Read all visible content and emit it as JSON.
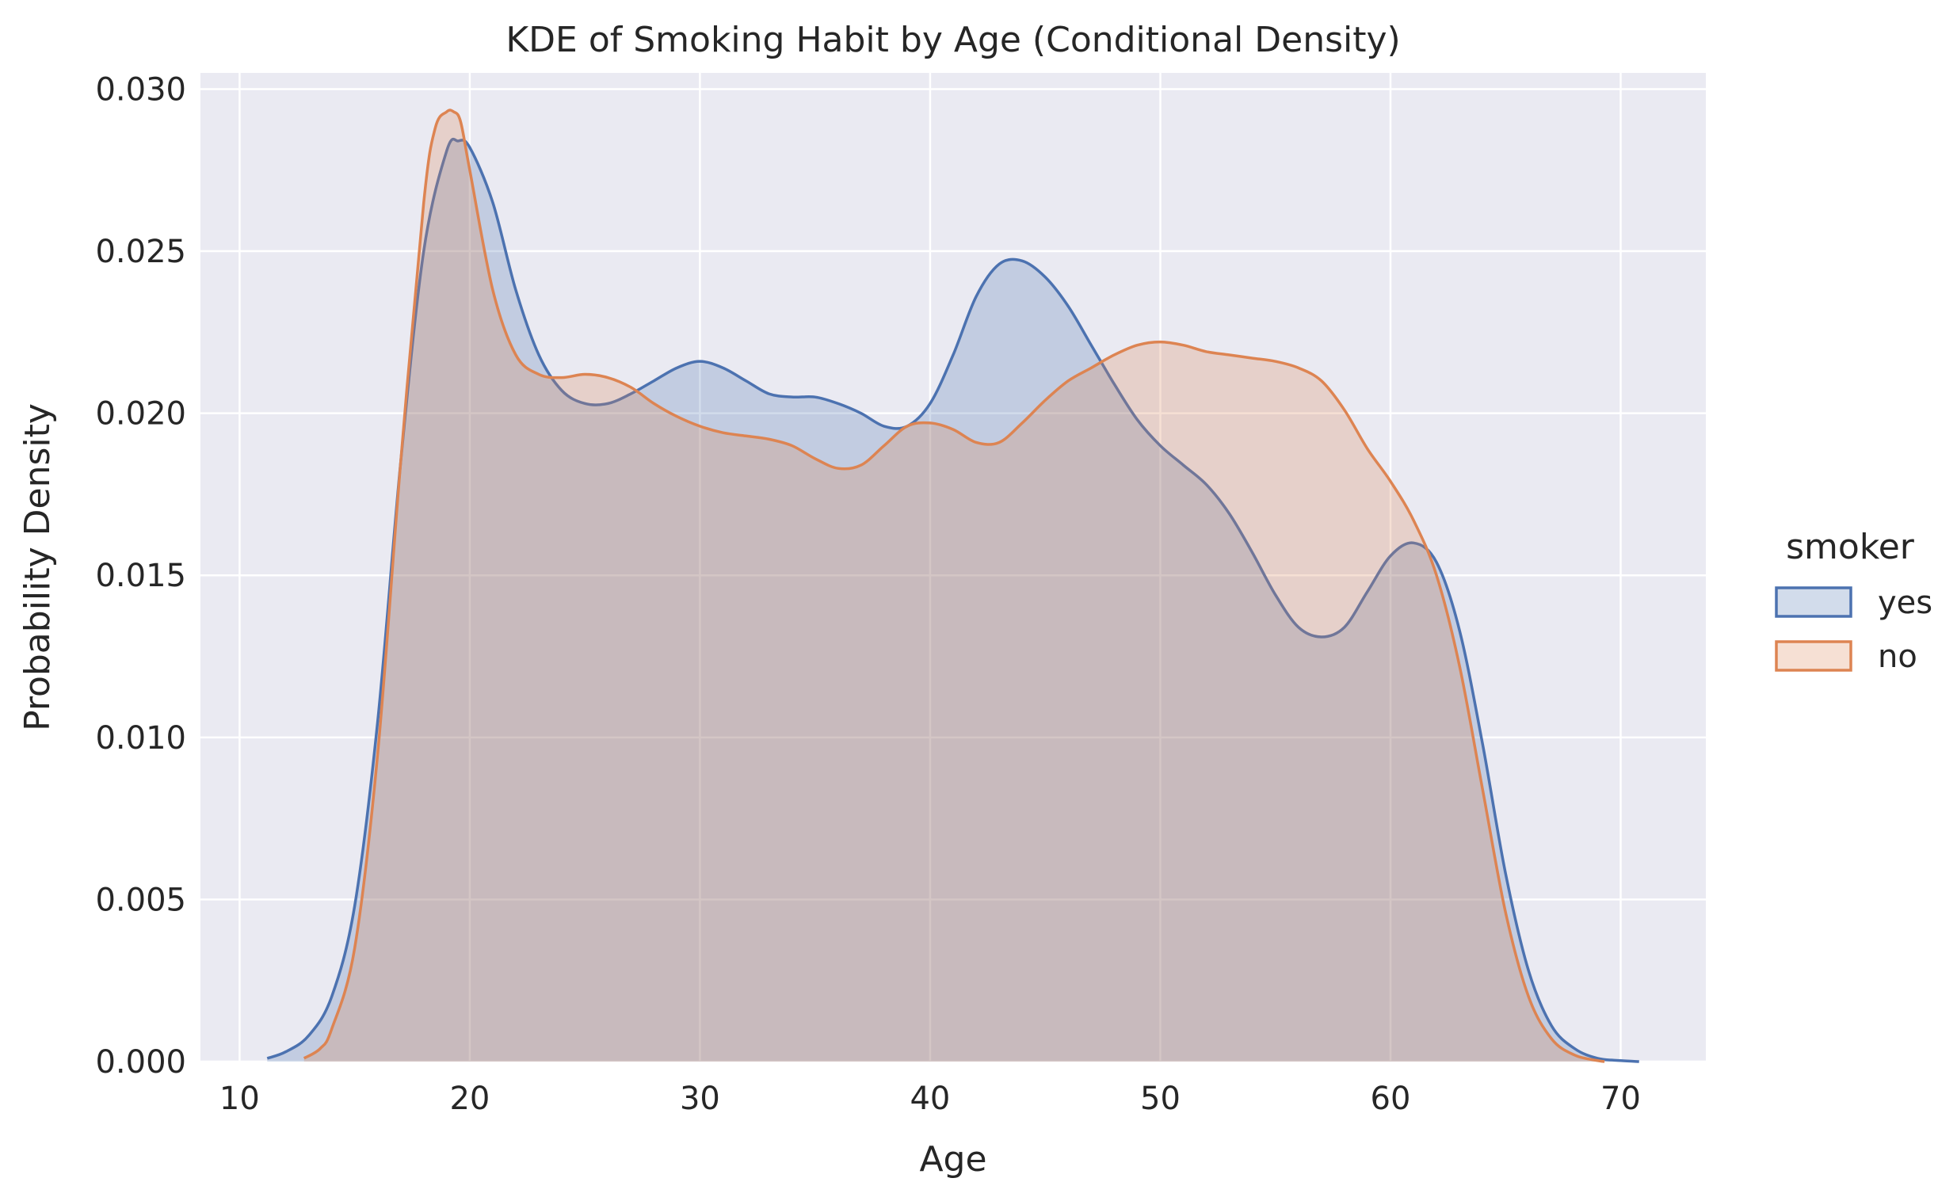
{
  "chart_data": {
    "type": "area",
    "title": "KDE of Smoking Habit by Age (Conditional Density)",
    "xlabel": "Age",
    "ylabel": "Probability Density",
    "xlim": [
      8.3,
      73.7
    ],
    "ylim": [
      0,
      0.0305
    ],
    "xticks": [
      10,
      20,
      30,
      40,
      50,
      60,
      70
    ],
    "yticks": [
      0.0,
      0.005,
      0.01,
      0.015,
      0.02,
      0.025,
      0.03
    ],
    "ytick_labels": [
      "0.000",
      "0.005",
      "0.010",
      "0.015",
      "0.020",
      "0.025",
      "0.030"
    ],
    "grid": true,
    "legend": {
      "title": "smoker",
      "placement": "right"
    },
    "series": [
      {
        "name": "yes",
        "color": "#4c72b0",
        "fill_opacity": 0.25,
        "x": [
          11.2,
          12,
          13,
          14,
          15,
          16,
          17,
          18,
          19,
          19.5,
          20,
          21,
          22,
          23,
          24,
          25,
          26,
          27,
          28,
          29,
          30,
          31,
          32,
          33,
          34,
          35,
          36,
          37,
          38,
          39,
          40,
          41,
          42,
          43,
          44,
          45,
          46,
          47,
          48,
          49,
          50,
          51,
          52,
          53,
          54,
          55,
          56,
          57,
          58,
          59,
          60,
          61,
          62,
          63,
          64,
          65,
          66,
          67,
          68,
          69,
          70,
          70.8
        ],
        "y": [
          0.0001,
          0.0003,
          0.0008,
          0.002,
          0.0048,
          0.0105,
          0.0185,
          0.025,
          0.0281,
          0.0284,
          0.0282,
          0.0265,
          0.0238,
          0.0218,
          0.0207,
          0.0203,
          0.0203,
          0.0206,
          0.021,
          0.0214,
          0.0216,
          0.0214,
          0.021,
          0.0206,
          0.0205,
          0.0205,
          0.0203,
          0.02,
          0.0196,
          0.0196,
          0.0203,
          0.0218,
          0.0236,
          0.0246,
          0.0247,
          0.0242,
          0.0233,
          0.0221,
          0.0209,
          0.0198,
          0.019,
          0.0184,
          0.0178,
          0.0169,
          0.0157,
          0.0144,
          0.0134,
          0.0131,
          0.0134,
          0.0145,
          0.0156,
          0.016,
          0.0154,
          0.0133,
          0.0098,
          0.0058,
          0.0028,
          0.0011,
          0.0004,
          0.0001,
          3e-05,
          0.0
        ]
      },
      {
        "name": "no",
        "color": "#dd8452",
        "fill_opacity": 0.25,
        "x": [
          12.8,
          13.5,
          14,
          15,
          16,
          17,
          18,
          18.5,
          19,
          19.3,
          19.6,
          20,
          21,
          22,
          23,
          24,
          25,
          26,
          27,
          28,
          29,
          30,
          31,
          32,
          33,
          34,
          35,
          36,
          37,
          38,
          39,
          40,
          41,
          42,
          43,
          44,
          45,
          46,
          47,
          48,
          49,
          50,
          51,
          52,
          53,
          54,
          55,
          56,
          57,
          58,
          59,
          60,
          61,
          62,
          63,
          64,
          65,
          66,
          67,
          68,
          69,
          69.3
        ],
        "y": [
          0.0001,
          0.0004,
          0.001,
          0.0035,
          0.0095,
          0.0185,
          0.0265,
          0.0288,
          0.0293,
          0.0293,
          0.029,
          0.0275,
          0.0238,
          0.0218,
          0.0212,
          0.0211,
          0.0212,
          0.0211,
          0.0208,
          0.0203,
          0.0199,
          0.0196,
          0.0194,
          0.0193,
          0.0192,
          0.019,
          0.0186,
          0.0183,
          0.0184,
          0.019,
          0.0196,
          0.0197,
          0.0195,
          0.0191,
          0.0191,
          0.0197,
          0.0204,
          0.021,
          0.0214,
          0.0218,
          0.0221,
          0.0222,
          0.0221,
          0.0219,
          0.0218,
          0.0217,
          0.0216,
          0.0214,
          0.021,
          0.0201,
          0.0189,
          0.0179,
          0.0167,
          0.015,
          0.0122,
          0.0084,
          0.0046,
          0.002,
          0.0007,
          0.0002,
          3e-05,
          0.0
        ]
      }
    ]
  }
}
